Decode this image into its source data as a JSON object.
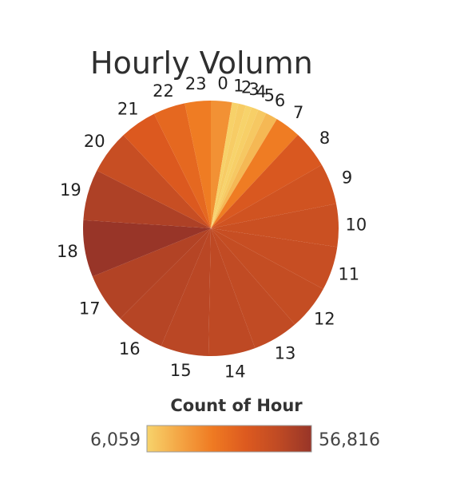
{
  "chart_data": {
    "type": "pie",
    "title": "Hourly Volumn",
    "categories": [
      "0",
      "1",
      "2",
      "3",
      "4",
      "5",
      "6",
      "7",
      "8",
      "9",
      "10",
      "11",
      "12",
      "13",
      "14",
      "15",
      "16",
      "17",
      "18",
      "19",
      "20",
      "21",
      "22",
      "23"
    ],
    "values": [
      21000,
      6500,
      7500,
      6059,
      7000,
      8500,
      12000,
      26000,
      38000,
      41000,
      43000,
      44000,
      45000,
      46000,
      47000,
      48000,
      49000,
      50000,
      56816,
      51000,
      44000,
      37000,
      32000,
      26000
    ],
    "color_legend": {
      "title": "Count of Hour",
      "min_label": "6,059",
      "max_label": "56,816",
      "min_value": 6059,
      "max_value": 56816,
      "colors": [
        "#f7d36b",
        "#f4a544",
        "#ef7a22",
        "#dd5a1f",
        "#bf4a24",
        "#983528"
      ]
    }
  }
}
